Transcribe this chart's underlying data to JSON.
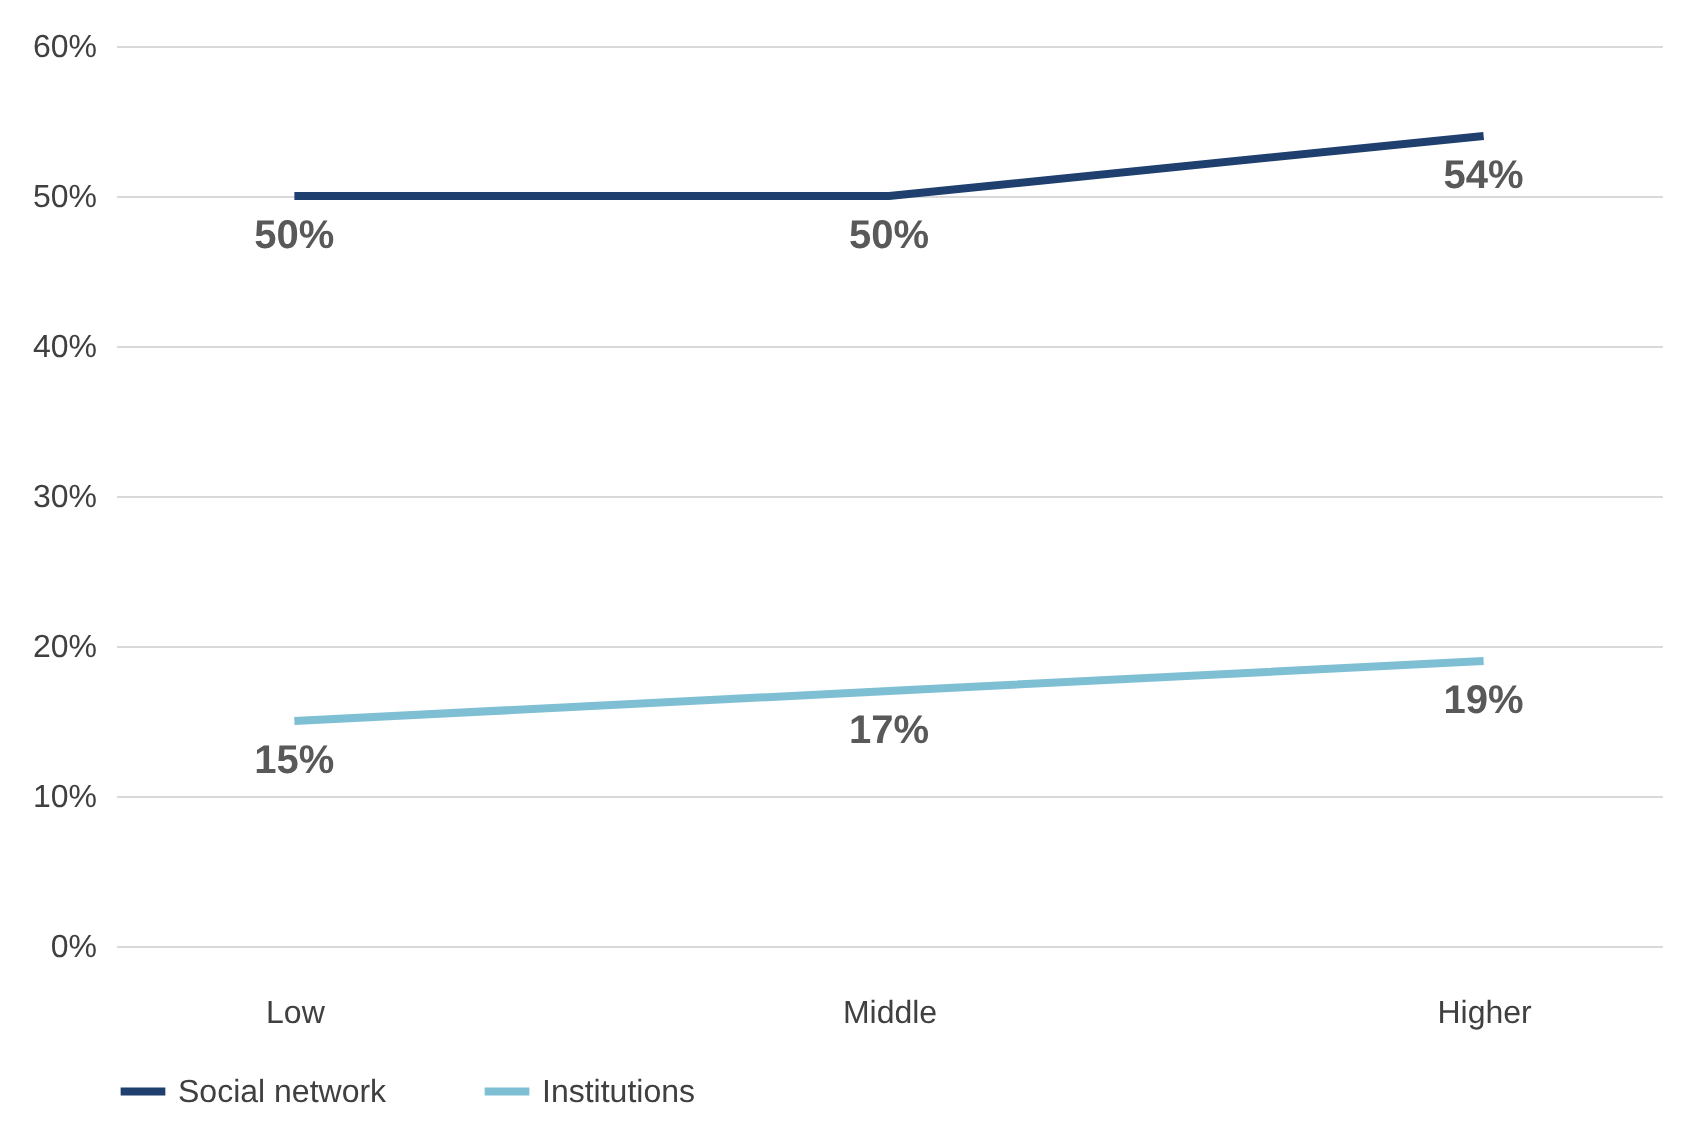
{
  "chart_data": {
    "type": "line",
    "categories": [
      "Low",
      "Middle",
      "Higher"
    ],
    "series": [
      {
        "name": "Social network",
        "color": "#1f3f6e",
        "values": [
          50,
          50,
          54
        ],
        "value_labels": [
          "50%",
          "50%",
          "54%"
        ]
      },
      {
        "name": "Institutions",
        "color": "#7fbfd4",
        "values": [
          15,
          17,
          19
        ],
        "value_labels": [
          "15%",
          "17%",
          "19%"
        ]
      }
    ],
    "ylim": [
      0,
      60
    ],
    "yticks": [
      {
        "value": 0,
        "label": "0%"
      },
      {
        "value": 10,
        "label": "10%"
      },
      {
        "value": 20,
        "label": "20%"
      },
      {
        "value": 30,
        "label": "30%"
      },
      {
        "value": 40,
        "label": "40%"
      },
      {
        "value": 50,
        "label": "50%"
      },
      {
        "value": 60,
        "label": "60%"
      }
    ],
    "grid": "y",
    "legend": "bottom",
    "marker": "none",
    "line_style": "solid"
  }
}
